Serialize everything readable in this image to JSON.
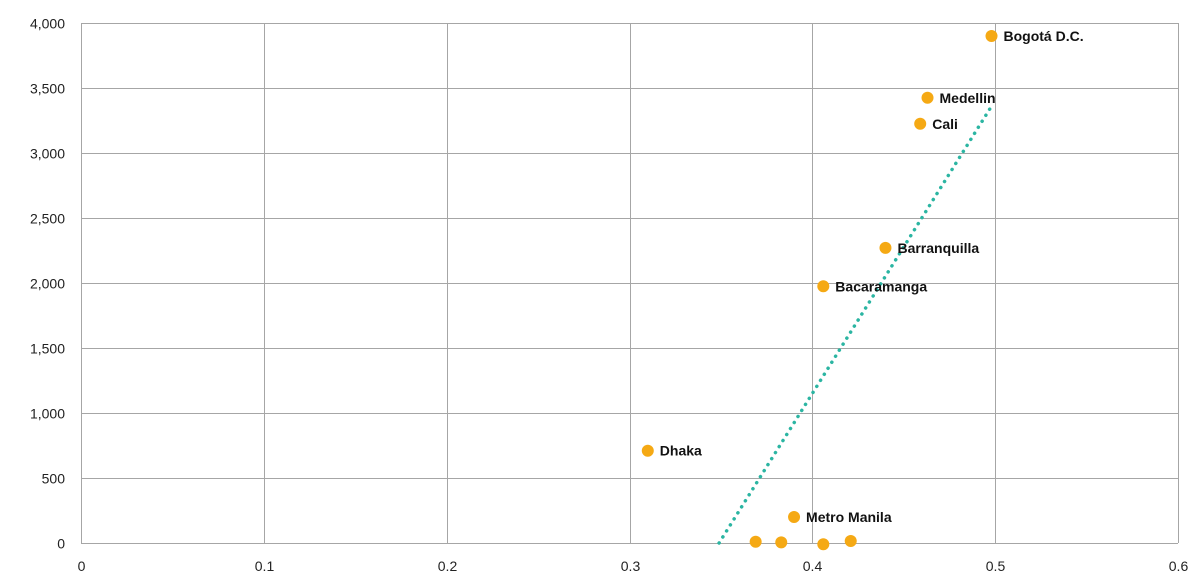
{
  "chart_data": {
    "type": "scatter",
    "title": "",
    "xlabel": "",
    "ylabel": "",
    "xlim": [
      0,
      0.6
    ],
    "ylim": [
      0,
      4000
    ],
    "x_ticks": [
      0,
      0.1,
      0.2,
      0.3,
      0.4,
      0.5,
      0.6
    ],
    "x_tick_labels": [
      "0",
      "0.1",
      "0.2",
      "0.3",
      "0.4",
      "0.5",
      "0.6"
    ],
    "y_ticks": [
      0,
      500,
      1000,
      1500,
      2000,
      2500,
      3000,
      3500,
      4000
    ],
    "y_tick_labels": [
      "0",
      "500",
      "1,000",
      "1,500",
      "2,000",
      "2,500",
      "3,000",
      "3,500",
      "4,000"
    ],
    "grid": true,
    "legend": "none",
    "colors": {
      "points": "#F5A914",
      "trendline": "#2BB5A2",
      "grid": "#a6a6a6"
    },
    "points": [
      {
        "x": 0.498,
        "y": 3900,
        "label": "Bogotá D.C."
      },
      {
        "x": 0.463,
        "y": 3425,
        "label": "Medellin"
      },
      {
        "x": 0.459,
        "y": 3225,
        "label": "Cali"
      },
      {
        "x": 0.44,
        "y": 2270,
        "label": "Barranquilla"
      },
      {
        "x": 0.406,
        "y": 1975,
        "label": "Bacaramanga"
      },
      {
        "x": 0.31,
        "y": 710,
        "label": "Dhaka"
      },
      {
        "x": 0.39,
        "y": 200,
        "label": "Metro Manila"
      },
      {
        "x": 0.369,
        "y": 10,
        "label": ""
      },
      {
        "x": 0.383,
        "y": 5,
        "label": ""
      },
      {
        "x": 0.406,
        "y": -10,
        "label": ""
      },
      {
        "x": 0.421,
        "y": 15,
        "label": ""
      }
    ],
    "trendline": {
      "style": "dotted",
      "x": [
        0.349,
        0.498
      ],
      "y": [
        0,
        3360
      ]
    }
  }
}
